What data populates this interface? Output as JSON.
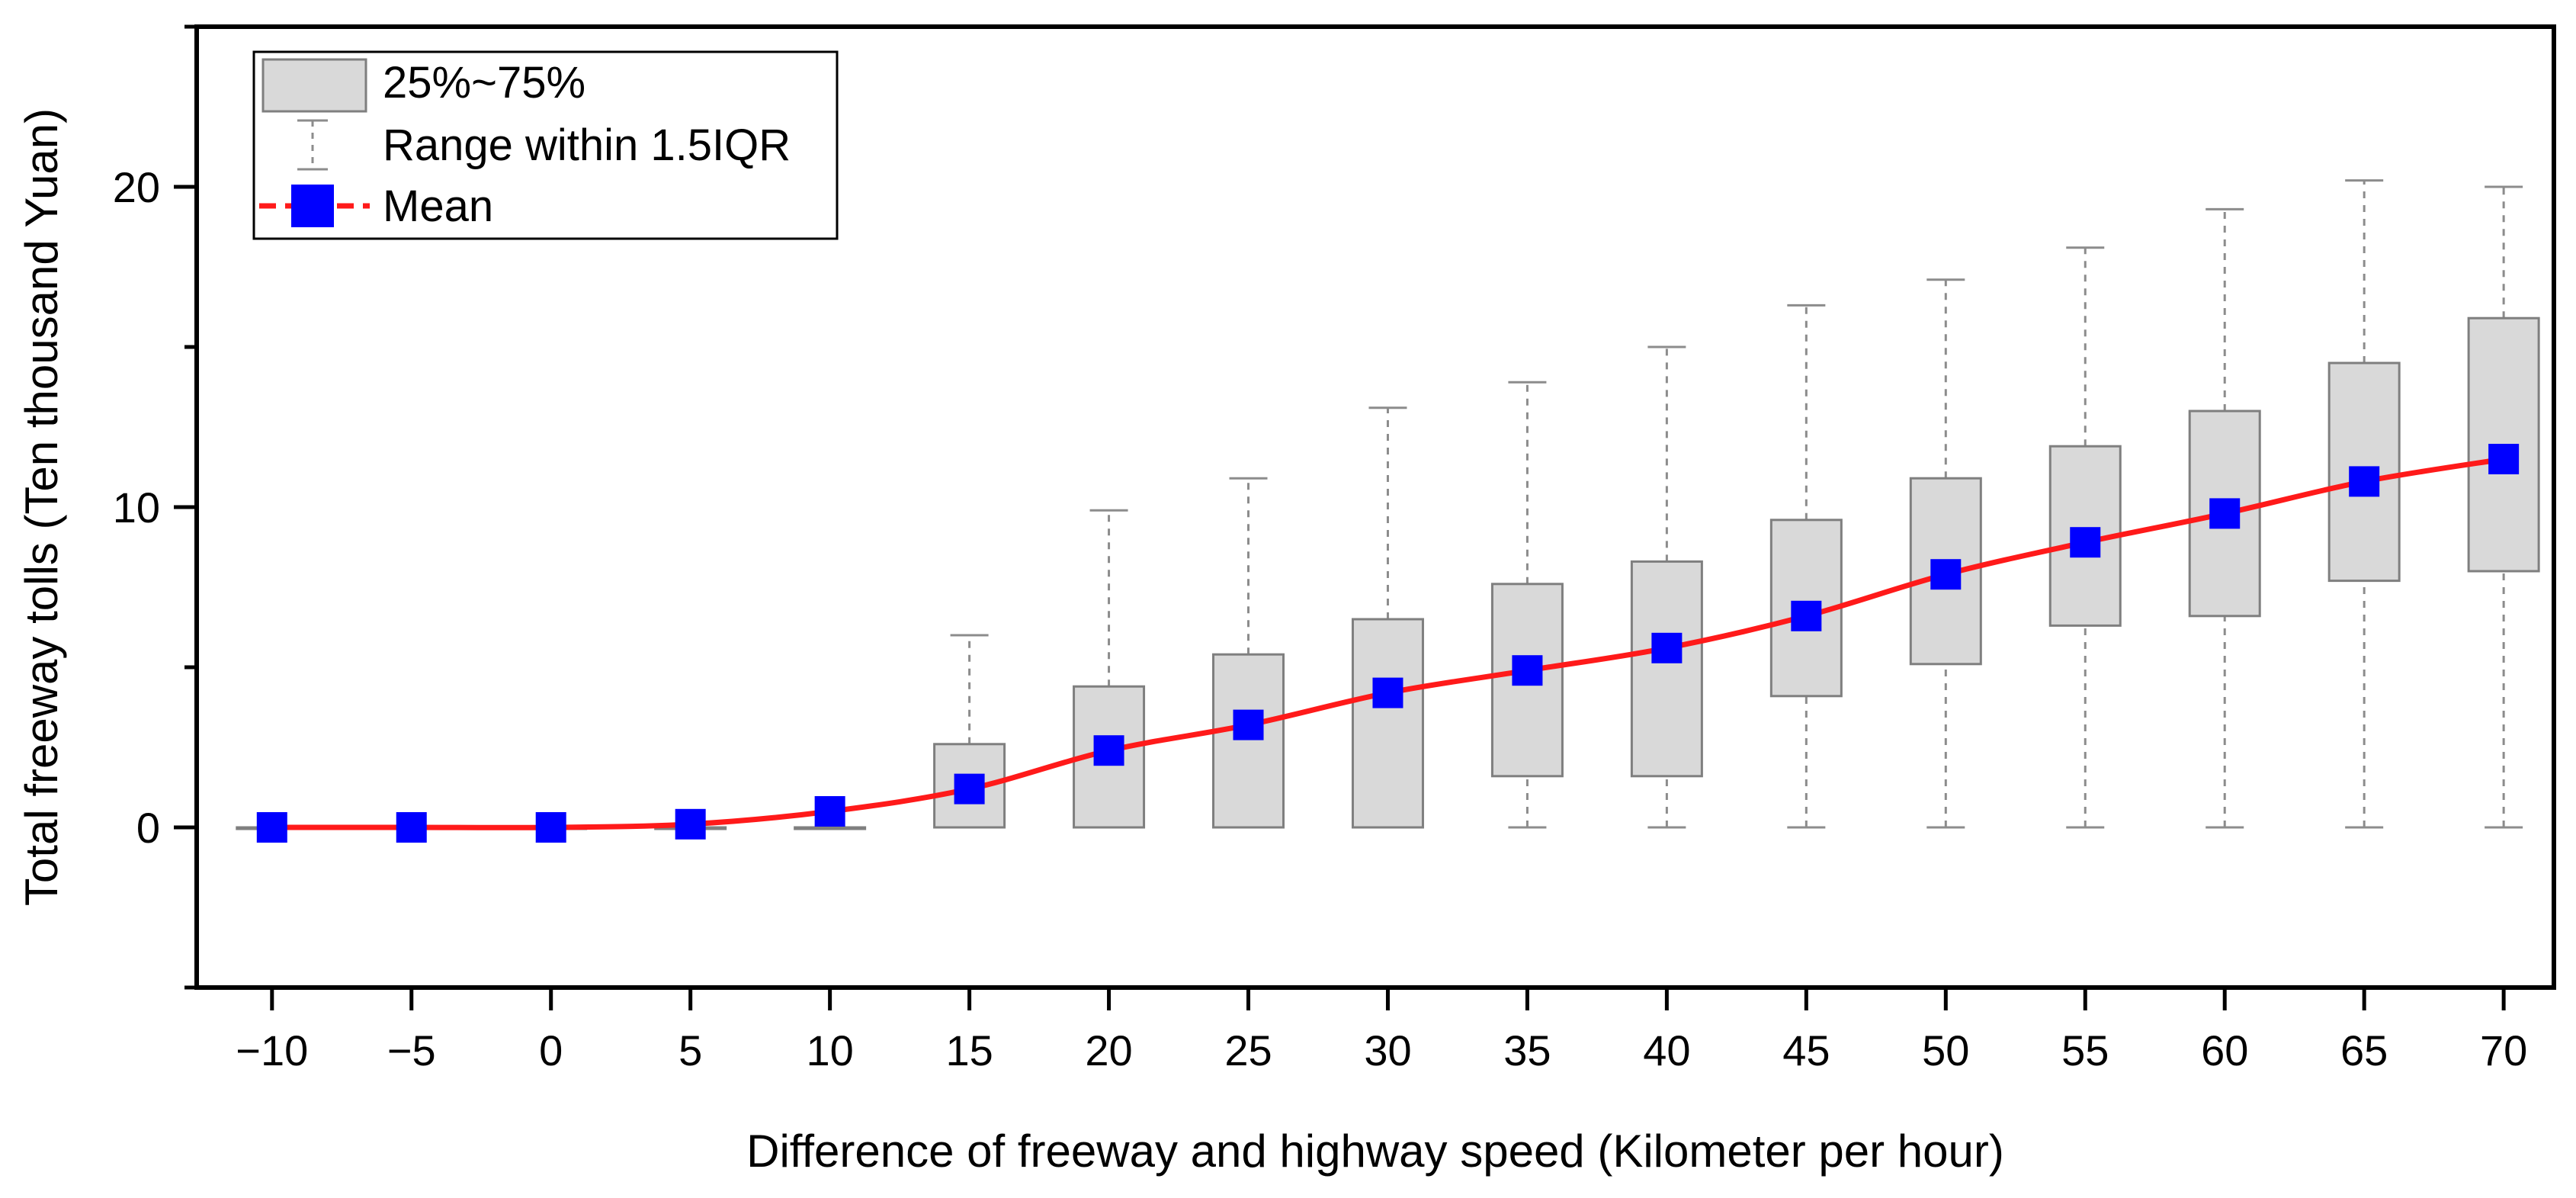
{
  "chart_data": {
    "type": "box",
    "title": "",
    "xlabel": "Difference of freeway and highway speed (Kilometer per hour)",
    "ylabel": "Total freeway tolls (Ten thousand Yuan)",
    "xlim": [
      -12.7,
      71.8
    ],
    "ylim": [
      -5,
      25
    ],
    "x_ticks": [
      -10,
      -5,
      0,
      5,
      10,
      15,
      20,
      25,
      30,
      35,
      40,
      45,
      50,
      55,
      60,
      65,
      70
    ],
    "x_tick_labels": [
      "−10",
      "−5",
      "0",
      "5",
      "10",
      "15",
      "20",
      "25",
      "30",
      "35",
      "40",
      "45",
      "50",
      "55",
      "60",
      "65",
      "70"
    ],
    "y_ticks": [
      0,
      10,
      20
    ],
    "y_tick_labels": [
      "0",
      "10",
      "20"
    ],
    "y_minor_ticks": [
      -5,
      5,
      15,
      25
    ],
    "grid": false,
    "legend": {
      "position": "top-left",
      "entries": [
        {
          "kind": "box",
          "label": "25%~75%"
        },
        {
          "kind": "whisker",
          "label": "Range within 1.5IQR"
        },
        {
          "kind": "mean",
          "label": "Mean"
        }
      ]
    },
    "colors": {
      "box_fill": "#d9d9d9",
      "box_edge": "#7f7f7f",
      "whisker": "#8c8c8c",
      "mean_line": "#ff1a1a",
      "mean_marker": "#0000ff"
    },
    "series": [
      {
        "x": [
          -10,
          -5,
          0,
          5,
          10,
          15,
          20,
          25,
          30,
          35,
          40,
          45,
          50,
          55,
          60,
          65,
          70
        ],
        "q1": [
          0,
          0,
          0,
          0,
          0,
          0,
          0,
          0,
          0,
          1.6,
          1.6,
          4.1,
          5.1,
          6.3,
          6.6,
          7.7,
          8.0
        ],
        "q3": [
          0,
          0,
          0,
          0,
          0,
          2.6,
          4.4,
          5.4,
          6.5,
          7.6,
          8.3,
          9.6,
          10.9,
          11.9,
          13.0,
          14.5,
          15.9
        ],
        "whisker_low": [
          0,
          0,
          0,
          0,
          0,
          0,
          0,
          0,
          0,
          0,
          0,
          0,
          0,
          0,
          0,
          0,
          0
        ],
        "whisker_high": [
          0,
          0,
          0,
          0,
          0,
          6.0,
          9.9,
          10.9,
          13.1,
          13.9,
          15.0,
          16.3,
          17.1,
          18.1,
          19.3,
          20.2,
          20.0
        ],
        "mean": [
          0,
          0,
          0,
          0.1,
          0.5,
          1.2,
          2.4,
          3.2,
          4.2,
          4.9,
          5.6,
          6.6,
          7.9,
          8.9,
          9.8,
          10.8,
          11.5
        ]
      }
    ]
  }
}
